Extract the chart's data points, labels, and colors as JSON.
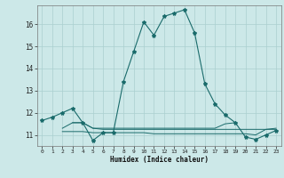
{
  "title": "",
  "xlabel": "Humidex (Indice chaleur)",
  "background_color": "#cce8e8",
  "line_color": "#1a6b6b",
  "grid_color": "#aacfcf",
  "xlim": [
    -0.5,
    23.5
  ],
  "ylim": [
    10.5,
    16.85
  ],
  "yticks": [
    11,
    12,
    13,
    14,
    15,
    16
  ],
  "xticks": [
    0,
    1,
    2,
    3,
    4,
    5,
    6,
    7,
    8,
    9,
    10,
    11,
    12,
    13,
    14,
    15,
    16,
    17,
    18,
    19,
    20,
    21,
    22,
    23
  ],
  "main_line": {
    "x": [
      0,
      1,
      2,
      3,
      4,
      5,
      6,
      7,
      8,
      9,
      10,
      11,
      12,
      13,
      14,
      15,
      16,
      17,
      18,
      19,
      20,
      21,
      22,
      23
    ],
    "y": [
      11.65,
      11.8,
      12.0,
      12.2,
      11.55,
      10.75,
      11.1,
      11.1,
      13.4,
      14.75,
      16.1,
      15.5,
      16.35,
      16.5,
      16.65,
      15.6,
      13.3,
      12.4,
      11.9,
      11.55,
      10.9,
      10.8,
      11.0,
      11.2
    ]
  },
  "flat_line1": {
    "x": [
      2,
      3,
      4,
      5,
      6,
      7,
      8,
      9,
      10,
      11,
      12,
      13,
      14,
      15,
      16,
      17,
      18,
      19,
      20,
      21,
      22,
      23
    ],
    "y": [
      11.3,
      11.55,
      11.55,
      11.3,
      11.25,
      11.25,
      11.25,
      11.25,
      11.25,
      11.25,
      11.25,
      11.25,
      11.25,
      11.25,
      11.25,
      11.25,
      11.25,
      11.25,
      11.25,
      11.25,
      11.25,
      11.25
    ]
  },
  "flat_line2": {
    "x": [
      2,
      3,
      4,
      5,
      6,
      7,
      8,
      9,
      10,
      11,
      12,
      13,
      14,
      15,
      16,
      17,
      18,
      19,
      20,
      21,
      22,
      23
    ],
    "y": [
      11.15,
      11.15,
      11.15,
      11.1,
      11.1,
      11.1,
      11.1,
      11.1,
      11.1,
      11.05,
      11.05,
      11.05,
      11.05,
      11.05,
      11.05,
      11.05,
      11.05,
      11.05,
      11.05,
      11.0,
      11.25,
      11.3
    ]
  },
  "flat_line3": {
    "x": [
      3,
      4,
      5,
      6,
      7,
      8,
      9,
      10,
      11,
      12,
      13,
      14,
      15,
      16,
      17,
      18,
      19
    ],
    "y": [
      11.55,
      11.55,
      11.3,
      11.3,
      11.3,
      11.3,
      11.3,
      11.3,
      11.3,
      11.3,
      11.3,
      11.3,
      11.3,
      11.3,
      11.3,
      11.5,
      11.55
    ]
  }
}
